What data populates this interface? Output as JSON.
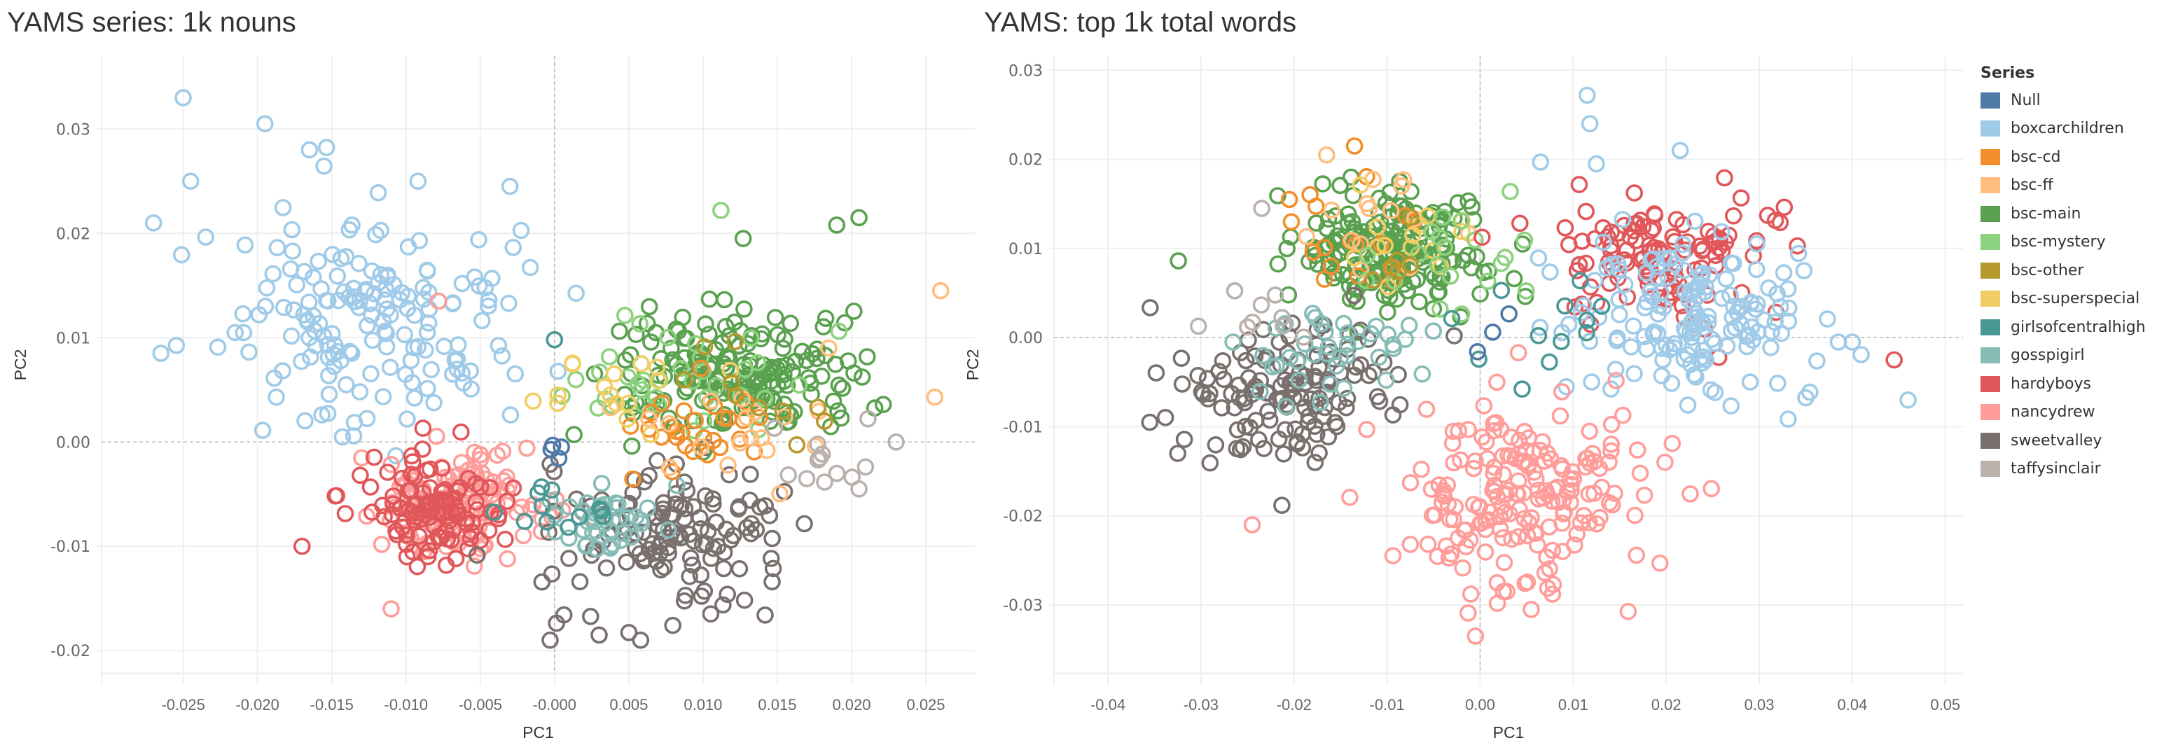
{
  "legend": {
    "title": "Series",
    "items": [
      {
        "label": "Null",
        "color": "#4e79a7"
      },
      {
        "label": "boxcarchildren",
        "color": "#a0cbe8"
      },
      {
        "label": "bsc-cd",
        "color": "#f28e2b"
      },
      {
        "label": "bsc-ff",
        "color": "#ffbe7d"
      },
      {
        "label": "bsc-main",
        "color": "#59a14f"
      },
      {
        "label": "bsc-mystery",
        "color": "#8cd17d"
      },
      {
        "label": "bsc-other",
        "color": "#b6992d"
      },
      {
        "label": "bsc-superspecial",
        "color": "#f1ce63"
      },
      {
        "label": "girlsofcentralhigh",
        "color": "#499894"
      },
      {
        "label": "gosspigirl",
        "color": "#86bcb6"
      },
      {
        "label": "hardyboys",
        "color": "#e15759"
      },
      {
        "label": "nancydrew",
        "color": "#ff9d9a"
      },
      {
        "label": "sweetvalley",
        "color": "#79706e"
      },
      {
        "label": "taffysinclair",
        "color": "#bab0ac"
      }
    ]
  },
  "chart_data": [
    {
      "type": "scatter",
      "title": "YAMS series: 1k nouns",
      "xlabel": "PC1",
      "ylabel": "PC2",
      "xlim": [
        -0.0305,
        0.0283
      ],
      "ylim": [
        -0.0222,
        0.037
      ],
      "xticks": [
        -0.025,
        -0.02,
        -0.015,
        -0.01,
        -0.005,
        0.0,
        0.005,
        0.01,
        0.015,
        0.02,
        0.025
      ],
      "xtick_labels": [
        "-0.025",
        "-0.020",
        "-0.015",
        "-0.010",
        "-0.005",
        "-0.000",
        "0.005",
        "0.010",
        "0.015",
        "0.020",
        "0.025"
      ],
      "yticks": [
        0.03,
        0.02,
        0.01,
        0.0,
        -0.01,
        -0.02
      ],
      "ytick_labels": [
        "0.03",
        "0.02",
        "0.01",
        "0.00",
        "-0.01",
        "-0.02"
      ],
      "grid": true,
      "zero_lines": true,
      "marker": "open-circle",
      "clusters": [
        {
          "series": "boxcarchildren",
          "cx": -0.0125,
          "cy": 0.012,
          "sx": 0.0045,
          "sy": 0.0055,
          "n": 170,
          "seed": 11
        },
        {
          "series": "nancydrew",
          "cx": -0.0065,
          "cy": -0.006,
          "sx": 0.003,
          "sy": 0.0025,
          "n": 130,
          "seed": 12
        },
        {
          "series": "hardyboys",
          "cx": -0.0085,
          "cy": -0.0065,
          "sx": 0.0025,
          "sy": 0.0022,
          "n": 110,
          "seed": 13
        },
        {
          "series": "sweetvalley",
          "cx": 0.0075,
          "cy": -0.0095,
          "sx": 0.0045,
          "sy": 0.0035,
          "n": 130,
          "seed": 14
        },
        {
          "series": "gosspigirl",
          "cx": 0.003,
          "cy": -0.0075,
          "sx": 0.0018,
          "sy": 0.0018,
          "n": 40,
          "seed": 15
        },
        {
          "series": "girlsofcentralhigh",
          "cx": 0.0,
          "cy": -0.007,
          "sx": 0.0025,
          "sy": 0.0015,
          "n": 12,
          "seed": 16
        },
        {
          "series": "bsc-main",
          "cx": 0.0125,
          "cy": 0.0065,
          "sx": 0.0038,
          "sy": 0.003,
          "n": 180,
          "seed": 17
        },
        {
          "series": "bsc-mystery",
          "cx": 0.008,
          "cy": 0.005,
          "sx": 0.004,
          "sy": 0.003,
          "n": 35,
          "seed": 18
        },
        {
          "series": "bsc-cd",
          "cx": 0.0095,
          "cy": 0.001,
          "sx": 0.003,
          "sy": 0.0022,
          "n": 28,
          "seed": 19
        },
        {
          "series": "bsc-ff",
          "cx": 0.012,
          "cy": 0.0025,
          "sx": 0.0045,
          "sy": 0.003,
          "n": 20,
          "seed": 20
        },
        {
          "series": "bsc-superspecial",
          "cx": 0.005,
          "cy": 0.004,
          "sx": 0.0035,
          "sy": 0.003,
          "n": 16,
          "seed": 21
        },
        {
          "series": "bsc-other",
          "cx": 0.011,
          "cy": 0.004,
          "sx": 0.0035,
          "sy": 0.0025,
          "n": 10,
          "seed": 22
        },
        {
          "series": "taffysinclair",
          "cx": 0.0185,
          "cy": -0.0015,
          "sx": 0.0025,
          "sy": 0.002,
          "n": 12,
          "seed": 23
        },
        {
          "series": "Null",
          "cx": 0.0,
          "cy": -0.0005,
          "sx": 0.0005,
          "sy": 0.0005,
          "n": 4,
          "seed": 24
        }
      ],
      "points": [
        {
          "series": "boxcarchildren",
          "x": -0.025,
          "y": 0.033
        },
        {
          "series": "boxcarchildren",
          "x": -0.0195,
          "y": 0.0305
        },
        {
          "series": "boxcarchildren",
          "x": -0.0165,
          "y": 0.028
        },
        {
          "series": "boxcarchildren",
          "x": -0.0245,
          "y": 0.025
        },
        {
          "series": "boxcarchildren",
          "x": -0.003,
          "y": 0.0245
        },
        {
          "series": "boxcarchildren",
          "x": -0.027,
          "y": 0.021
        },
        {
          "series": "boxcarchildren",
          "x": -0.0265,
          "y": 0.0085
        },
        {
          "series": "nancydrew",
          "x": -0.0078,
          "y": 0.0135
        },
        {
          "series": "hardyboys",
          "x": -0.017,
          "y": -0.01
        },
        {
          "series": "nancydrew",
          "x": -0.011,
          "y": -0.016
        },
        {
          "series": "bsc-mystery",
          "x": 0.0112,
          "y": 0.0222
        },
        {
          "series": "bsc-main",
          "x": 0.019,
          "y": 0.0208
        },
        {
          "series": "bsc-main",
          "x": 0.0205,
          "y": 0.0215
        },
        {
          "series": "bsc-main",
          "x": 0.0127,
          "y": 0.0195
        },
        {
          "series": "bsc-ff",
          "x": 0.026,
          "y": 0.0145
        },
        {
          "series": "sweetvalley",
          "x": -0.0003,
          "y": -0.019
        },
        {
          "series": "sweetvalley",
          "x": 0.0058,
          "y": -0.019
        },
        {
          "series": "sweetvalley",
          "x": 0.003,
          "y": -0.0185
        },
        {
          "series": "taffysinclair",
          "x": 0.023,
          "y": 0.0
        },
        {
          "series": "taffysinclair",
          "x": 0.0205,
          "y": -0.0045
        },
        {
          "series": "girlsofcentralhigh",
          "x": 0.0,
          "y": 0.0098
        }
      ]
    },
    {
      "type": "scatter",
      "title": "YAMS: top 1k total words",
      "xlabel": "PC1",
      "ylabel": "PC2",
      "xlim": [
        -0.0458,
        0.0519
      ],
      "ylim": [
        -0.0377,
        0.0316
      ],
      "xticks": [
        -0.04,
        -0.03,
        -0.02,
        -0.01,
        0.0,
        0.01,
        0.02,
        0.03,
        0.04,
        0.05
      ],
      "xtick_labels": [
        "-0.04",
        "-0.03",
        "-0.02",
        "-0.01",
        "0.00",
        "0.01",
        "0.02",
        "0.03",
        "0.04",
        "0.05"
      ],
      "yticks": [
        0.03,
        0.02,
        0.01,
        0.0,
        -0.01,
        -0.02,
        -0.03
      ],
      "ytick_labels": [
        "0.03",
        "0.02",
        "0.01",
        "0.00",
        "-0.01",
        "-0.02",
        "-0.03"
      ],
      "grid": true,
      "zero_lines": true,
      "marker": "open-circle",
      "clusters": [
        {
          "series": "bsc-main",
          "cx": -0.01,
          "cy": 0.01,
          "sx": 0.0055,
          "sy": 0.003,
          "n": 190,
          "seed": 31
        },
        {
          "series": "bsc-cd",
          "cx": -0.013,
          "cy": 0.0105,
          "sx": 0.004,
          "sy": 0.004,
          "n": 16,
          "seed": 32
        },
        {
          "series": "bsc-ff",
          "cx": -0.0115,
          "cy": 0.0125,
          "sx": 0.004,
          "sy": 0.003,
          "n": 14,
          "seed": 33
        },
        {
          "series": "bsc-superspecial",
          "cx": -0.007,
          "cy": 0.011,
          "sx": 0.0035,
          "sy": 0.0025,
          "n": 14,
          "seed": 34
        },
        {
          "series": "bsc-mystery",
          "cx": -0.003,
          "cy": 0.009,
          "sx": 0.005,
          "sy": 0.003,
          "n": 20,
          "seed": 35
        },
        {
          "series": "hardyboys",
          "cx": 0.02,
          "cy": 0.0095,
          "sx": 0.007,
          "sy": 0.0035,
          "n": 110,
          "seed": 36
        },
        {
          "series": "boxcarchildren",
          "cx": 0.023,
          "cy": 0.002,
          "sx": 0.0065,
          "sy": 0.0045,
          "n": 160,
          "seed": 37
        },
        {
          "series": "nancydrew",
          "cx": 0.005,
          "cy": -0.0175,
          "sx": 0.006,
          "sy": 0.005,
          "n": 190,
          "seed": 38
        },
        {
          "series": "sweetvalley",
          "cx": -0.021,
          "cy": -0.0055,
          "sx": 0.006,
          "sy": 0.004,
          "n": 130,
          "seed": 39
        },
        {
          "series": "gosspigirl",
          "cx": -0.017,
          "cy": -0.0015,
          "sx": 0.004,
          "sy": 0.0025,
          "n": 40,
          "seed": 40
        },
        {
          "series": "girlsofcentralhigh",
          "cx": 0.007,
          "cy": 0.0005,
          "sx": 0.0045,
          "sy": 0.004,
          "n": 12,
          "seed": 41
        },
        {
          "series": "taffysinclair",
          "cx": -0.023,
          "cy": 0.004,
          "sx": 0.003,
          "sy": 0.004,
          "n": 10,
          "seed": 42
        },
        {
          "series": "bsc-other",
          "cx": -0.009,
          "cy": 0.009,
          "sx": 0.003,
          "sy": 0.002,
          "n": 6,
          "seed": 43
        },
        {
          "series": "Null",
          "cx": 0.002,
          "cy": 0.001,
          "sx": 0.002,
          "sy": 0.0015,
          "n": 3,
          "seed": 44
        }
      ],
      "points": [
        {
          "series": "boxcarchildren",
          "x": 0.0115,
          "y": 0.0272
        },
        {
          "series": "boxcarchildren",
          "x": 0.0118,
          "y": 0.024
        },
        {
          "series": "boxcarchildren",
          "x": 0.0215,
          "y": 0.021
        },
        {
          "series": "boxcarchildren",
          "x": 0.0065,
          "y": 0.0197
        },
        {
          "series": "boxcarchildren",
          "x": 0.0125,
          "y": 0.0195
        },
        {
          "series": "boxcarchildren",
          "x": 0.046,
          "y": -0.007
        },
        {
          "series": "boxcarchildren",
          "x": 0.04,
          "y": -0.0005
        },
        {
          "series": "boxcarchildren",
          "x": 0.0385,
          "y": -0.0005
        },
        {
          "series": "hardyboys",
          "x": 0.0445,
          "y": -0.0025
        },
        {
          "series": "bsc-cd",
          "x": -0.0135,
          "y": 0.0215
        },
        {
          "series": "bsc-ff",
          "x": -0.0165,
          "y": 0.0205
        },
        {
          "series": "bsc-cd",
          "x": -0.0205,
          "y": 0.0155
        },
        {
          "series": "nancydrew",
          "x": -0.0245,
          "y": -0.021
        },
        {
          "series": "nancydrew",
          "x": -0.0075,
          "y": -0.0232
        },
        {
          "series": "nancydrew",
          "x": -0.0005,
          "y": -0.0335
        },
        {
          "series": "nancydrew",
          "x": 0.0055,
          "y": -0.0305
        },
        {
          "series": "sweetvalley",
          "x": -0.0355,
          "y": -0.0095
        },
        {
          "series": "sweetvalley",
          "x": -0.0325,
          "y": -0.013
        }
      ]
    }
  ],
  "panels": {
    "left": {
      "title": "YAMS series: 1k nouns",
      "xlabel": "PC1",
      "ylabel": "PC2"
    },
    "right": {
      "title": "YAMS: top 1k total words",
      "xlabel": "PC1",
      "ylabel": "PC2"
    }
  }
}
